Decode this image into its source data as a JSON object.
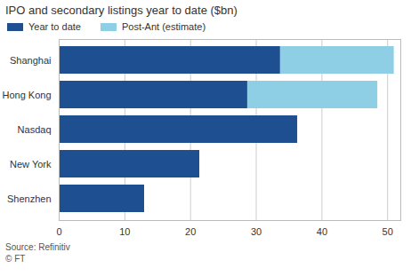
{
  "chart_data": {
    "type": "bar",
    "orientation": "horizontal",
    "stacked": true,
    "title": "IPO and secondary listings year to date ($bn)",
    "categories": [
      "Shanghai",
      "Hong Kong",
      "Nasdaq",
      "New York",
      "Shenzhen"
    ],
    "series": [
      {
        "name": "Year to date",
        "color": "#1e4f91",
        "values": [
          33.7,
          28.7,
          36.3,
          21.4,
          13.0
        ]
      },
      {
        "name": "Post-Ant (estimate)",
        "color": "#8ecfe6",
        "values": [
          17.3,
          19.8,
          0,
          0,
          0
        ]
      }
    ],
    "xlim": [
      0,
      52
    ],
    "xticks": [
      0,
      10,
      20,
      30,
      40,
      50
    ],
    "grid": true,
    "legend": "top-left",
    "source": "Source: Refinitiv",
    "credit": "© FT"
  }
}
